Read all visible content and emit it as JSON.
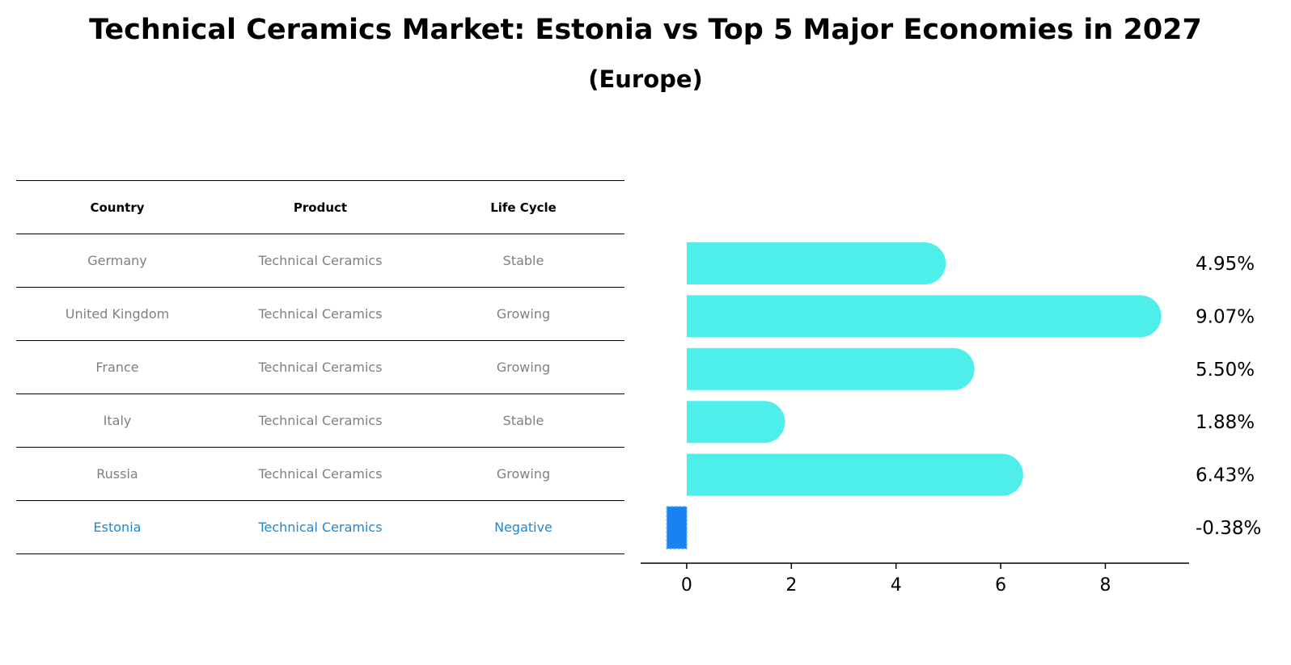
{
  "title": "Technical Ceramics Market: Estonia vs Top 5 Major Economies in 2027",
  "subtitle": "(Europe)",
  "table": {
    "headers": [
      "Country",
      "Product",
      "Life Cycle"
    ],
    "rows": [
      [
        "Germany",
        "Technical Ceramics",
        "Stable"
      ],
      [
        "United Kingdom",
        "Technical Ceramics",
        "Growing"
      ],
      [
        "France",
        "Technical Ceramics",
        "Growing"
      ],
      [
        "Italy",
        "Technical Ceramics",
        "Stable"
      ],
      [
        "Russia",
        "Technical Ceramics",
        "Growing"
      ],
      [
        "Estonia",
        "Technical Ceramics",
        "Negative"
      ]
    ],
    "highlight_color": "#1e88d6",
    "text_color": "#808080"
  },
  "chart_data": {
    "type": "bar",
    "orientation": "horizontal",
    "categories": [
      "Germany",
      "United Kingdom",
      "France",
      "Italy",
      "Russia",
      "Estonia"
    ],
    "values": [
      4.95,
      9.07,
      5.5,
      1.88,
      6.43,
      -0.38
    ],
    "labels": [
      "4.95%",
      "9.07%",
      "5.50%",
      "1.88%",
      "6.43%",
      "-0.38%"
    ],
    "xticks": [
      0,
      2,
      4,
      6,
      8
    ],
    "xlim": [
      -0.88,
      9.6
    ],
    "colors": {
      "default": "#4eeeea",
      "highlight": "#1a82f0"
    },
    "highlight_index": 5
  }
}
